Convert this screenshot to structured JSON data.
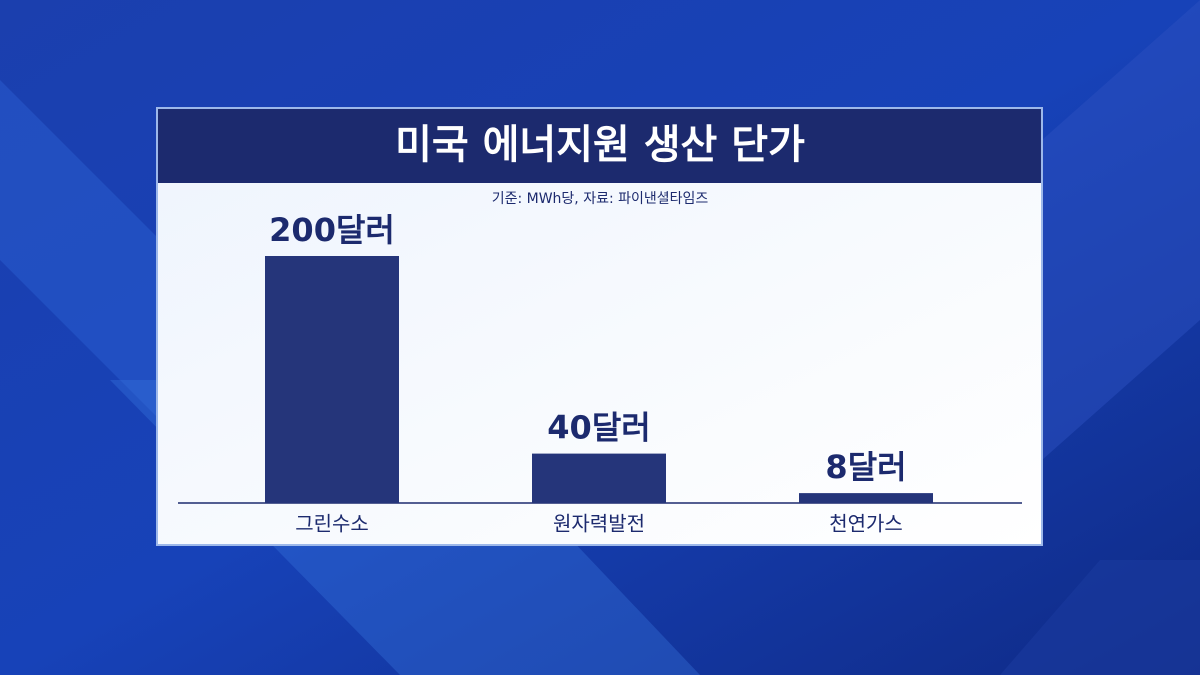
{
  "chart_data": {
    "type": "bar",
    "title": "미국 에너지원 생산 단가",
    "subtitle": "기준: MWh당, 자료: 파이낸셜타임즈",
    "categories": [
      "그린수소",
      "원자력발전",
      "천연가스"
    ],
    "values": [
      200,
      40,
      8
    ],
    "value_labels": [
      "200달러",
      "40달러",
      "8달러"
    ],
    "color": "#25357a"
  }
}
